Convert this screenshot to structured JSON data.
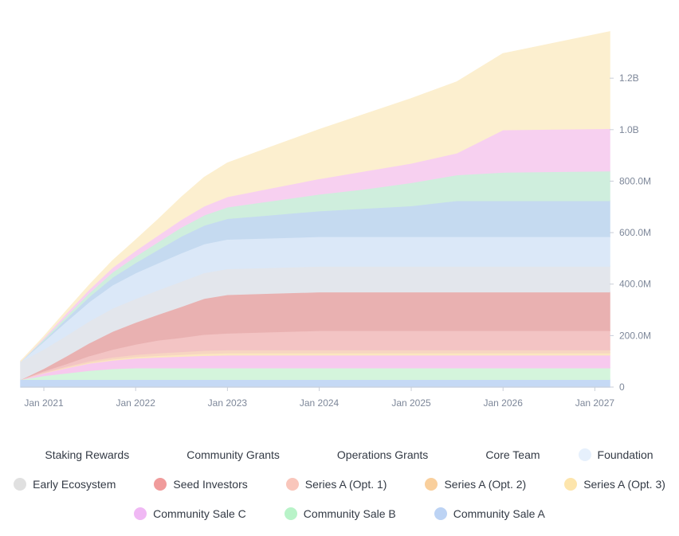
{
  "chart_data": {
    "type": "area",
    "stacked": true,
    "x_ticks": [
      "Jan 2021",
      "Jan 2022",
      "Jan 2023",
      "Jan 2024",
      "Jan 2025",
      "Jan 2026",
      "Jan 2027"
    ],
    "y_ticks": [
      "0",
      "200.0M",
      "400.0M",
      "600.0M",
      "800.0M",
      "1.0B",
      "1.2B"
    ],
    "ylim": [
      0,
      1380000000
    ],
    "xlim": [
      "2020-10-01",
      "2027-03-01"
    ],
    "dates": [
      "2020-10-01",
      "2021-01-01",
      "2021-04-01",
      "2021-07-01",
      "2021-10-01",
      "2022-01-01",
      "2022-04-01",
      "2022-07-01",
      "2022-10-01",
      "2023-01-01",
      "2023-07-01",
      "2024-01-01",
      "2024-07-01",
      "2025-01-01",
      "2025-07-01",
      "2026-01-01",
      "2027-03-01"
    ],
    "legend_position": "bottom",
    "series": [
      {
        "name": "Community Sale A",
        "color": "#c5d9f5",
        "values": [
          30,
          30,
          30,
          30,
          30,
          30,
          30,
          30,
          30,
          30,
          30,
          30,
          30,
          30,
          30,
          30,
          30
        ]
      },
      {
        "name": "Community Sale B",
        "color": "#d4f5dc",
        "values": [
          0,
          15,
          25,
          35,
          42,
          45,
          45,
          45,
          45,
          45,
          45,
          45,
          45,
          45,
          45,
          45,
          45
        ]
      },
      {
        "name": "Community Sale C",
        "color": "#f7c9ee",
        "values": [
          0,
          10,
          20,
          28,
          33,
          38,
          42,
          45,
          48,
          50,
          50,
          50,
          50,
          50,
          50,
          50,
          50
        ]
      },
      {
        "name": "Series A (Opt. 3)",
        "color": "#fbe7bf",
        "values": [
          0,
          1,
          2,
          3,
          4,
          5,
          6,
          7,
          8,
          8,
          8,
          8,
          8,
          8,
          8,
          8,
          8
        ]
      },
      {
        "name": "Series A (Opt. 2)",
        "color": "#f7d5c2",
        "values": [
          0,
          2,
          4,
          6,
          8,
          9,
          10,
          11,
          12,
          12,
          12,
          12,
          12,
          12,
          12,
          12,
          12
        ]
      },
      {
        "name": "Series A (Opt. 1)",
        "color": "#f3c4c4",
        "values": [
          0,
          5,
          10,
          20,
          30,
          40,
          50,
          55,
          62,
          65,
          70,
          75,
          75,
          75,
          75,
          75,
          75
        ]
      },
      {
        "name": "Seed Investors",
        "color": "#e9b1b1",
        "values": [
          0,
          10,
          30,
          50,
          70,
          85,
          100,
          120,
          140,
          150,
          150,
          150,
          150,
          150,
          150,
          150,
          150
        ]
      },
      {
        "name": "Early Ecosystem",
        "color": "#e3e6ec",
        "values": [
          70,
          75,
          80,
          85,
          90,
          92,
          95,
          98,
          100,
          100,
          100,
          100,
          100,
          100,
          100,
          100,
          100
        ]
      },
      {
        "name": "Foundation",
        "color": "#dbe8f8",
        "values": [
          0,
          30,
          55,
          75,
          90,
          100,
          105,
          110,
          112,
          115,
          115,
          115,
          115,
          115,
          115,
          115,
          115
        ]
      },
      {
        "name": "Core Team",
        "color": "#c5daf0",
        "values": [
          0,
          5,
          12,
          20,
          30,
          40,
          52,
          65,
          72,
          80,
          90,
          100,
          110,
          120,
          140,
          140,
          140
        ]
      },
      {
        "name": "Operations Grants",
        "color": "#cfeedd",
        "values": [
          0,
          5,
          10,
          15,
          20,
          25,
          30,
          35,
          40,
          45,
          55,
          65,
          75,
          90,
          100,
          110,
          115
        ]
      },
      {
        "name": "Community Grants",
        "color": "#f7d0f0",
        "values": [
          0,
          5,
          10,
          14,
          18,
          22,
          26,
          30,
          35,
          40,
          50,
          60,
          70,
          75,
          85,
          165,
          165
        ]
      },
      {
        "name": "Staking Rewards",
        "color": "#fcefcf",
        "values": [
          0,
          3,
          8,
          15,
          25,
          40,
          60,
          85,
          110,
          130,
          160,
          190,
          220,
          250,
          275,
          295,
          375
        ]
      }
    ]
  },
  "legend": {
    "rows": [
      [
        {
          "label": "Staking Rewards",
          "color": "#ffffff"
        },
        {
          "label": "Community Grants",
          "color": "#ffffff"
        },
        {
          "label": "Operations Grants",
          "color": "#ffffff"
        },
        {
          "label": "Core Team",
          "color": "#ffffff"
        },
        {
          "label": "Foundation",
          "color": "#e6f0fc"
        }
      ],
      [
        {
          "label": "Early Ecosystem",
          "color": "#e0e0e0"
        },
        {
          "label": "Seed Investors",
          "color": "#f09b9b"
        },
        {
          "label": "Series A (Opt. 1)",
          "color": "#f9c6bb"
        },
        {
          "label": "Series A (Opt. 2)",
          "color": "#f9cf9c"
        },
        {
          "label": "Series A (Opt. 3)",
          "color": "#fde5ac"
        }
      ],
      [
        {
          "label": "Community Sale C",
          "color": "#f0b8f4"
        },
        {
          "label": "Community Sale B",
          "color": "#b8f3c8"
        },
        {
          "label": "Community Sale A",
          "color": "#bcd3f4"
        }
      ]
    ]
  }
}
